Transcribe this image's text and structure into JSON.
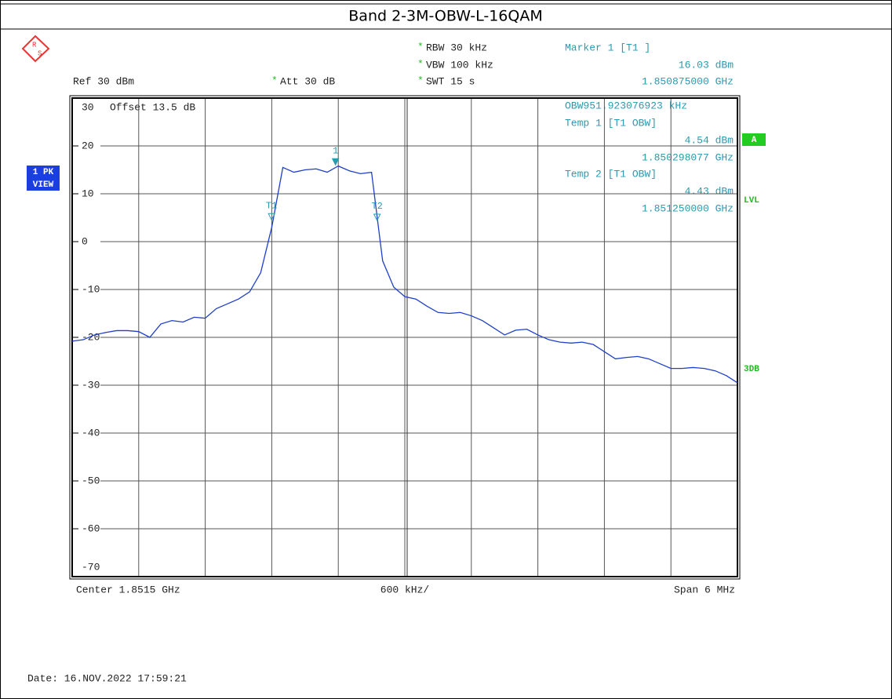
{
  "chart_data": {
    "type": "line",
    "title": "Band 2-3M-OBW-L-16QAM",
    "logo_letters": [
      "R",
      "S"
    ],
    "settings_flag": "*",
    "rbw": "RBW 30 kHz",
    "vbw": "VBW 100 kHz",
    "swt": "SWT 15 s",
    "ref": "Ref 30 dBm",
    "att": "Att 30 dB",
    "offset": "Offset 13.5 dB",
    "readout": [
      "Marker 1 [T1 ]",
      "16.03 dBm",
      "1.850875000 GHz",
      "OBW951.923076923 kHz",
      "Temp 1 [T1 OBW]",
      "4.54 dBm",
      "1.850298077 GHz",
      "Temp 2 [T1 OBW]",
      "4.43 dBm",
      "1.851250000 GHz"
    ],
    "left_badges": [
      "1 PK",
      "VIEW"
    ],
    "right_badge": "A",
    "right_labels": [
      "LVL",
      "3DB"
    ],
    "center": "Center 1.8515 GHz",
    "per_div": "600 kHz/",
    "span": "Span 6 MHz",
    "date": "Date: 16.NOV.2022 17:59:21",
    "color": "#1f3fc8",
    "marker_color": "#2a9ab0",
    "grid": true,
    "xlim": [
      1.8485,
      1.8545
    ],
    "xticks": [
      1.8485,
      1.8491,
      1.8497,
      1.8503,
      1.8509,
      1.8515,
      1.8521,
      1.8527,
      1.8533,
      1.8539,
      1.8545
    ],
    "ylim": [
      -70,
      30
    ],
    "yticks": [
      -70,
      -60,
      -50,
      -40,
      -30,
      -20,
      -10,
      0,
      10,
      20,
      30
    ],
    "x": [
      1.8485,
      1.8486,
      1.8487,
      1.8488,
      1.8489,
      1.849,
      1.8491,
      1.8492,
      1.8493,
      1.8494,
      1.8495,
      1.8496,
      1.8497,
      1.8498,
      1.8499,
      1.85,
      1.8501,
      1.8502,
      1.8503,
      1.8504,
      1.8505,
      1.8506,
      1.8507,
      1.8508,
      1.8509,
      1.851,
      1.8511,
      1.8512,
      1.8513,
      1.8514,
      1.8515,
      1.8516,
      1.8517,
      1.8518,
      1.8519,
      1.852,
      1.8521,
      1.8522,
      1.8523,
      1.8524,
      1.8525,
      1.8526,
      1.8527,
      1.8528,
      1.8529,
      1.853,
      1.8531,
      1.8532,
      1.8533,
      1.8534,
      1.8535,
      1.8536,
      1.8537,
      1.8538,
      1.8539,
      1.854,
      1.8541,
      1.8542,
      1.8543,
      1.8544,
      1.8545
    ],
    "values": [
      -20.8,
      -20.5,
      -19.5,
      -19,
      -18.6,
      -18.6,
      -18.8,
      -20,
      -17.2,
      -16.5,
      -16.8,
      -15.8,
      -16,
      -14,
      -13,
      -12,
      -10.5,
      -6.5,
      3,
      15.5,
      14.5,
      15,
      15.2,
      14.5,
      15.8,
      14.8,
      14.2,
      14.5,
      -4,
      -9.5,
      -11.5,
      -12,
      -13.5,
      -14.8,
      -15,
      -14.8,
      -15.5,
      -16.5,
      -18,
      -19.5,
      -18.5,
      -18.3,
      -19.5,
      -20.5,
      -21,
      -21.2,
      -21,
      -21.5,
      -23,
      -24.5,
      -24.2,
      -24,
      -24.5,
      -25.5,
      -26.5,
      -26.5,
      -26.3,
      -26.5,
      -27,
      -28,
      -29.5
    ],
    "markers": [
      {
        "label": "1",
        "x": 1.850875,
        "y": 16.03
      },
      {
        "label": "T1",
        "x": 1.850298077,
        "y": 4.54
      },
      {
        "label": "T2",
        "x": 1.85125,
        "y": 4.43
      }
    ]
  }
}
